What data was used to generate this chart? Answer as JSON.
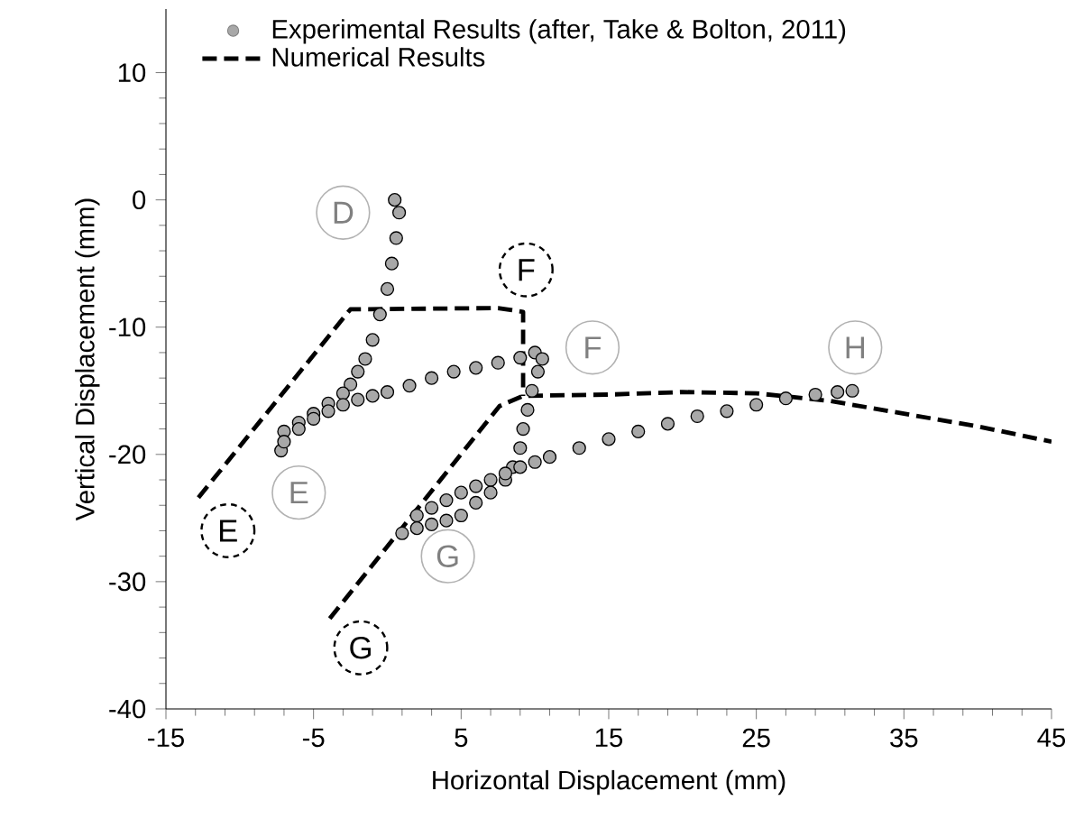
{
  "chart_data": {
    "type": "scatter",
    "xlabel": "Horizontal Displacement (mm)",
    "ylabel": "Vertical Displacement (mm)",
    "xlim": [
      -15,
      45
    ],
    "ylim": [
      -40,
      15
    ],
    "xticks": [
      -15,
      -5,
      5,
      15,
      25,
      35,
      45
    ],
    "yticks": [
      -40,
      -30,
      -20,
      -10,
      0,
      10
    ],
    "grid": false,
    "legend": "top left",
    "series": [
      {
        "name": "Experimental Results (after, Take & Bolton, 2011)",
        "marker": "circle",
        "color": "#a8a8a8",
        "x": [
          0.5,
          0.8,
          0.6,
          0.3,
          0,
          -0.5,
          -1,
          -1.5,
          -2,
          -2.5,
          -3,
          -4,
          -5,
          -6,
          -7,
          -7.2,
          -7,
          -6,
          -5,
          -4,
          -3,
          -2,
          -1,
          0,
          1.5,
          3,
          4.5,
          6,
          7.5,
          9,
          10,
          10.5,
          10.2,
          9.8,
          9.5,
          9.2,
          9,
          8.5,
          8,
          7,
          6,
          5,
          4,
          3,
          2,
          1,
          2,
          3,
          4,
          5,
          6,
          7,
          8,
          9,
          10,
          11,
          13,
          15,
          17,
          19,
          21,
          23,
          25,
          27,
          29,
          30.5,
          31.5
        ],
        "values": [
          0,
          -1,
          -3,
          -5,
          -7,
          -9,
          -11,
          -12.5,
          -13.5,
          -14.5,
          -15.2,
          -16,
          -16.8,
          -17.5,
          -18.2,
          -19.7,
          -19,
          -18,
          -17.2,
          -16.6,
          -16.1,
          -15.7,
          -15.4,
          -15.1,
          -14.6,
          -14,
          -13.5,
          -13.2,
          -12.8,
          -12.4,
          -12,
          -12.5,
          -13.5,
          -15,
          -16.5,
          -18,
          -19.5,
          -21,
          -22,
          -23,
          -23.8,
          -24.8,
          -25.2,
          -25.5,
          -25.8,
          -26.2,
          -24.8,
          -24.2,
          -23.6,
          -23,
          -22.5,
          -22,
          -21.5,
          -21,
          -20.6,
          -20.2,
          -19.5,
          -18.8,
          -18.2,
          -17.6,
          -17,
          -16.6,
          -16.1,
          -15.6,
          -15.3,
          -15.1,
          -15
        ]
      },
      {
        "name": "Numerical Results",
        "type": "line",
        "marker": "none",
        "line_style": "dashed",
        "color": "#000000",
        "x": [
          -12.8,
          -2.5,
          7.5,
          9.2,
          9.2,
          null,
          -3.9,
          7.6,
          9.2,
          15,
          20,
          25,
          30,
          35,
          40,
          45
        ],
        "values": [
          -23.4,
          -8.6,
          -8.5,
          -8.8,
          -15.4,
          null,
          -32.9,
          -16.2,
          -15.4,
          -15.3,
          -15.1,
          -15.2,
          -15.8,
          -16.8,
          -17.8,
          -19
        ]
      }
    ],
    "annotations": [
      {
        "text": "D",
        "x": -3,
        "y": -1
      },
      {
        "text": "E",
        "x": -6,
        "y": -23
      },
      {
        "text": "F",
        "x": 13.9,
        "y": -11.6
      },
      {
        "text": "G",
        "x": 4.1,
        "y": -28
      },
      {
        "text": "H",
        "x": 31.7,
        "y": -11.6
      },
      {
        "text": "F",
        "x": 9.4,
        "y": -5.5
      },
      {
        "text": "E",
        "x": -10.8,
        "y": -26
      },
      {
        "text": "G",
        "x": -1.8,
        "y": -35.2
      }
    ]
  }
}
